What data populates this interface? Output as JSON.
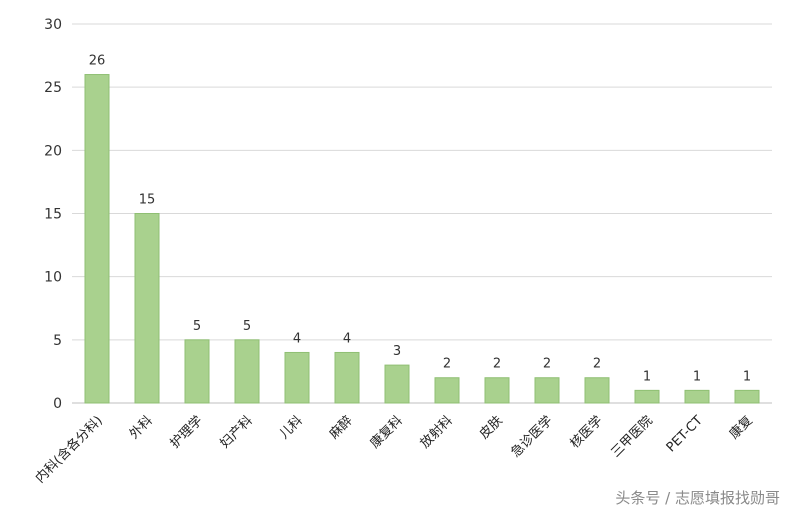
{
  "chart_data": {
    "type": "bar",
    "categories": [
      "内科(含各分科)",
      "外科",
      "护理学",
      "妇产科",
      "儿科",
      "麻醉",
      "康复科",
      "放射科",
      "皮肤",
      "急诊医学",
      "核医学",
      "三甲医院",
      "PET-CT",
      "康复"
    ],
    "values": [
      26,
      15,
      5,
      5,
      4,
      4,
      3,
      2,
      2,
      2,
      2,
      1,
      1,
      1
    ],
    "data_labels": [
      "26",
      "15",
      "5",
      "5",
      "4",
      "4",
      "3",
      "2",
      "2",
      "2",
      "2",
      "1",
      "1",
      "1"
    ],
    "y_ticks": [
      "0",
      "5",
      "10",
      "15",
      "20",
      "25",
      "30"
    ],
    "ylim": [
      0,
      30
    ],
    "grid": true,
    "bar_color": "#a9d18e",
    "bar_edge_color": "#8fbf73",
    "grid_color": "#d9d9d9"
  },
  "watermark": "头条号 / 志愿填报找勋哥"
}
